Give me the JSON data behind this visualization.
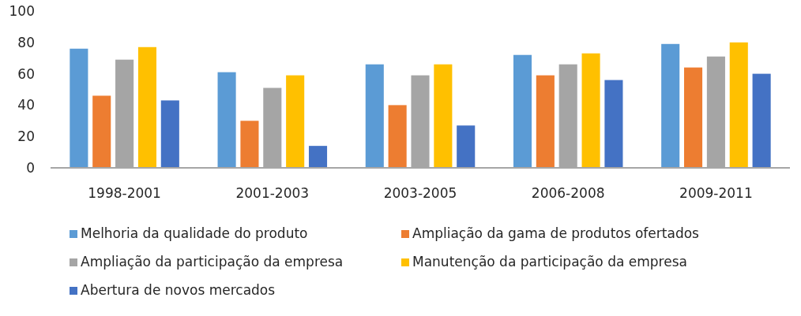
{
  "chart_data": {
    "type": "bar",
    "categories": [
      "1998-2001",
      "2001-2003",
      "2003-2005",
      "2006-2008",
      "2009-2011"
    ],
    "series": [
      {
        "name": "Melhoria da qualidade do produto",
        "color": "#5b9bd5",
        "values": [
          76,
          61,
          66,
          72,
          79
        ]
      },
      {
        "name": "Ampliação da gama de produtos ofertados",
        "color": "#ed7d31",
        "values": [
          46,
          30,
          40,
          59,
          64
        ]
      },
      {
        "name": "Ampliação da participação da empresa",
        "color": "#a5a5a5",
        "values": [
          69,
          51,
          59,
          66,
          71
        ]
      },
      {
        "name": "Manutenção da participação da empresa",
        "color": "#ffc000",
        "values": [
          77,
          59,
          66,
          73,
          80
        ]
      },
      {
        "name": "Abertura de novos mercados",
        "color": "#4472c4",
        "values": [
          43,
          14,
          27,
          56,
          60
        ]
      }
    ],
    "ylim": [
      0,
      100
    ],
    "yticks": [
      0,
      20,
      40,
      60,
      80,
      100
    ],
    "grid": false,
    "legend": "bottom"
  }
}
